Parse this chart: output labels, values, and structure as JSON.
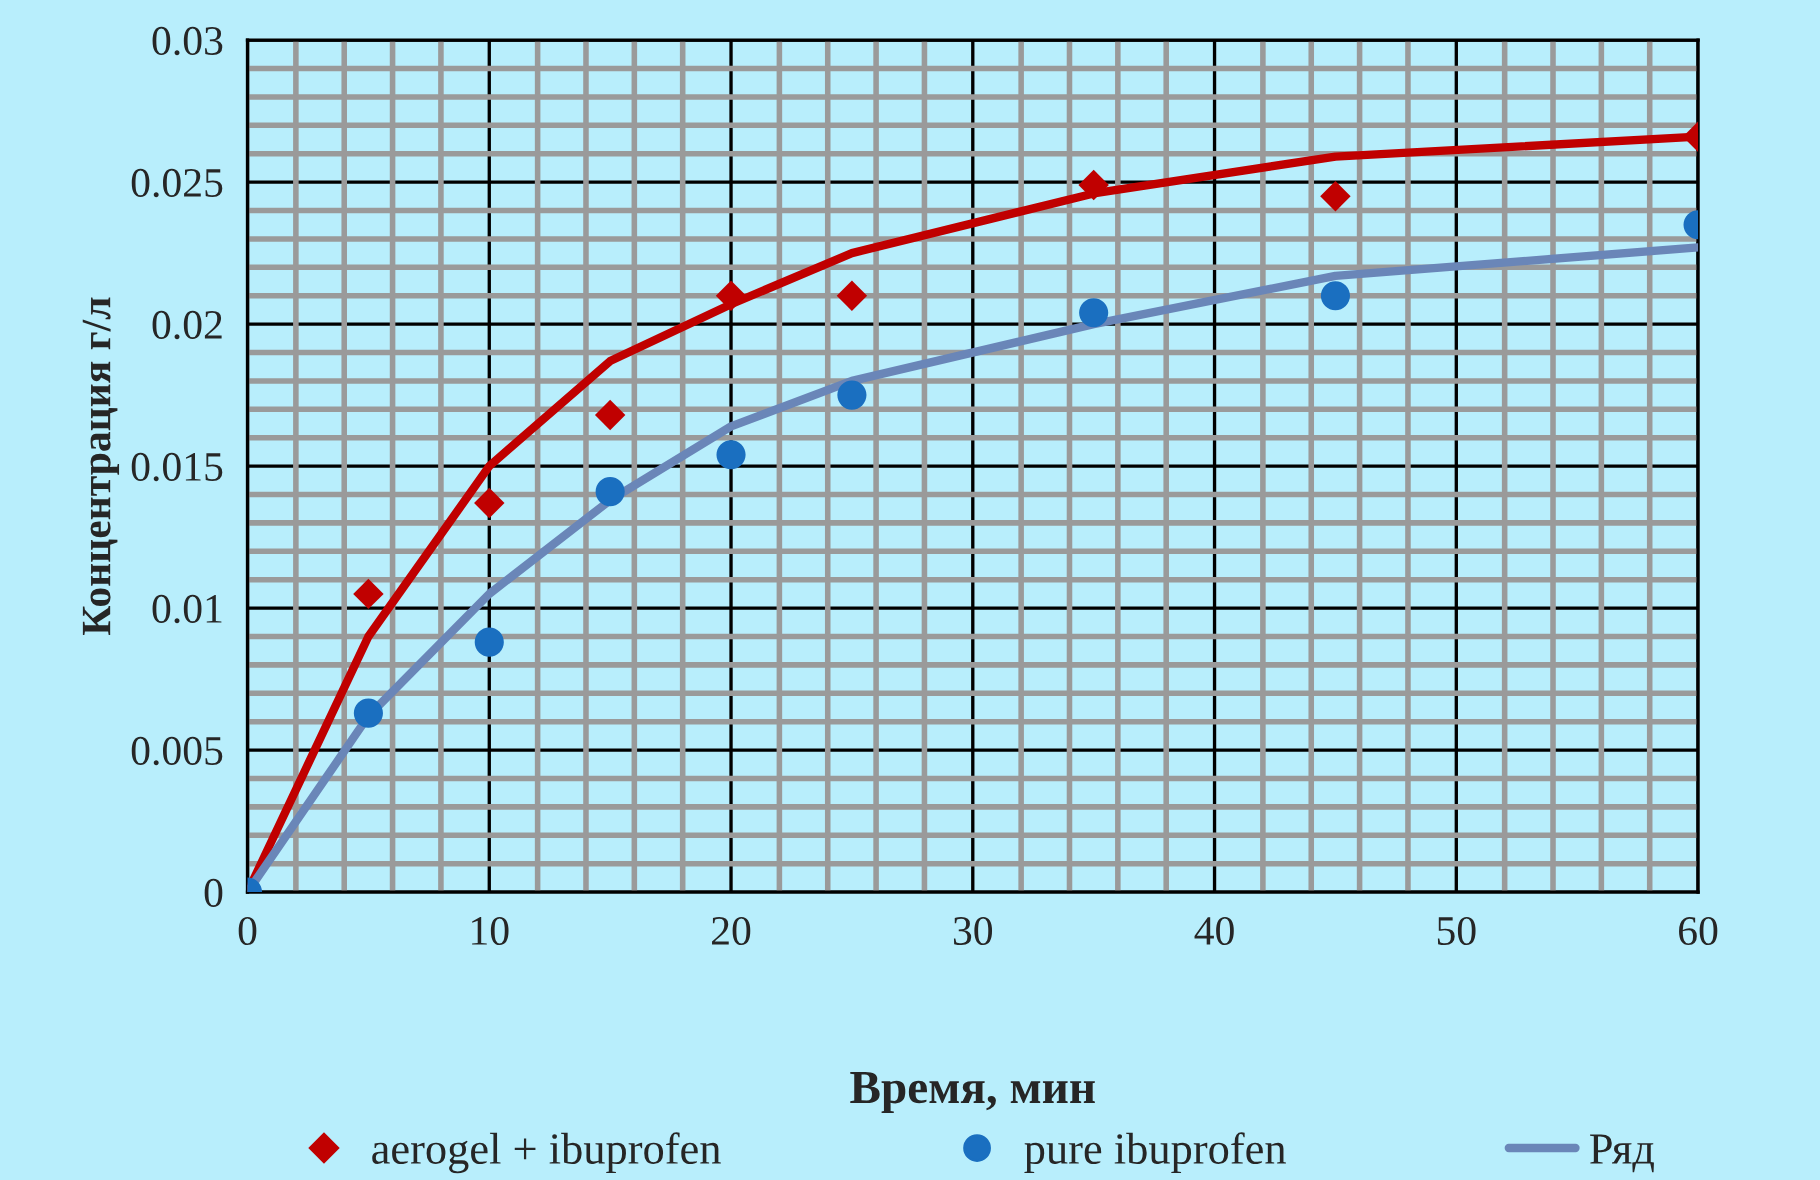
{
  "chart_data": {
    "type": "scatter",
    "xlabel": "Время, мин",
    "ylabel": "Концентрация г/л",
    "xlim": [
      0,
      60
    ],
    "xticks": [
      0,
      10,
      20,
      30,
      40,
      50,
      60
    ],
    "ylim": [
      0,
      0.03
    ],
    "yticks": [
      0,
      0.005,
      0.01,
      0.015,
      0.02,
      0.025,
      0.03
    ],
    "grid": true,
    "legend": "bottom",
    "series": [
      {
        "name": "aerogel + ibuprofen",
        "marker": "diamond",
        "color": "#c00000",
        "x": [
          5,
          10,
          15,
          20,
          25,
          35,
          45,
          60
        ],
        "values": [
          0.0105,
          0.0137,
          0.0168,
          0.021,
          0.021,
          0.0249,
          0.0245,
          0.0266
        ]
      },
      {
        "name": "pure ibuprofen",
        "marker": "circle",
        "color": "#1a6fc0",
        "x": [
          0,
          5,
          10,
          15,
          20,
          25,
          35,
          45,
          60
        ],
        "values": [
          0,
          0.0063,
          0.0088,
          0.0141,
          0.0154,
          0.0175,
          0.0204,
          0.021,
          0.0235
        ]
      },
      {
        "type": "line",
        "marker": "none",
        "color": "#c00000",
        "x": [
          0,
          5,
          10,
          15,
          20,
          25,
          35,
          45,
          60
        ],
        "values": [
          0,
          0.009,
          0.015,
          0.0187,
          0.0207,
          0.0225,
          0.0246,
          0.0259,
          0.0266
        ]
      },
      {
        "name": "Ряд",
        "type": "line",
        "marker": "none",
        "color": "#6a86b8",
        "x": [
          0,
          5,
          10,
          15,
          20,
          25,
          35,
          45,
          60
        ],
        "values": [
          0,
          0.0062,
          0.0105,
          0.0138,
          0.0164,
          0.018,
          0.02,
          0.0217,
          0.0227
        ]
      }
    ]
  }
}
